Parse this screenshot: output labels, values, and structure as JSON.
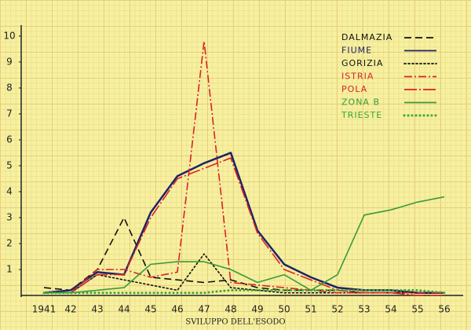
{
  "chart_data": {
    "type": "line",
    "title": "SVILUPPO DELL'ESODO",
    "categories": [
      "1941",
      "42",
      "43",
      "44",
      "45",
      "46",
      "47",
      "48",
      "49",
      "50",
      "51",
      "52",
      "53",
      "54",
      "55",
      "56"
    ],
    "ylim": [
      0,
      10.3
    ],
    "yticks": [
      1,
      2,
      3,
      4,
      5,
      6,
      7,
      8,
      9,
      10
    ],
    "series": [
      {
        "name": "DALMAZIA",
        "color": "#111111",
        "style": "dashed",
        "values": [
          0.3,
          0.2,
          1.0,
          3.0,
          0.7,
          0.6,
          0.5,
          0.6,
          0.3,
          0.2,
          0.2,
          0.2,
          0.1,
          0.1,
          0.1,
          0.1
        ]
      },
      {
        "name": "FIUME",
        "color": "#1c2466",
        "style": "solid",
        "values": [
          0.1,
          0.2,
          0.9,
          0.8,
          3.2,
          4.6,
          5.1,
          5.5,
          2.5,
          1.2,
          0.7,
          0.3,
          0.2,
          0.2,
          0.1,
          0.1
        ]
      },
      {
        "name": "GORIZIA",
        "color": "#111111",
        "style": "dotted",
        "values": [
          0.1,
          0.1,
          0.8,
          0.6,
          0.4,
          0.2,
          1.6,
          0.3,
          0.2,
          0.1,
          0.1,
          0.1,
          0.1,
          0.1,
          0.1,
          0.1
        ]
      },
      {
        "name": "ISTRIA",
        "color": "#d9232a",
        "style": "dashdot",
        "values": [
          0.1,
          0.1,
          1.0,
          1.0,
          0.7,
          0.9,
          9.8,
          0.5,
          0.4,
          0.3,
          0.2,
          0.1,
          0.1,
          0.1,
          0.1,
          0.1
        ]
      },
      {
        "name": "POLA",
        "color": "#d9232a",
        "style": "longdashdot",
        "values": [
          0.1,
          0.1,
          0.8,
          0.8,
          3.0,
          4.5,
          4.9,
          5.3,
          2.4,
          1.0,
          0.6,
          0.2,
          0.1,
          0.1,
          0.0,
          0.0
        ]
      },
      {
        "name": "ZONA B",
        "color": "#3a9a3a",
        "style": "solid",
        "values": [
          0.1,
          0.1,
          0.2,
          0.3,
          1.2,
          1.3,
          1.3,
          1.0,
          0.5,
          0.8,
          0.2,
          0.8,
          3.1,
          3.3,
          3.6,
          3.8
        ]
      },
      {
        "name": "TRIESTE",
        "color": "#3aa63a",
        "style": "circles",
        "values": [
          0.1,
          0.1,
          0.1,
          0.1,
          0.1,
          0.1,
          0.1,
          0.2,
          0.2,
          0.2,
          0.2,
          0.2,
          0.2,
          0.2,
          0.2,
          0.1
        ]
      }
    ]
  }
}
